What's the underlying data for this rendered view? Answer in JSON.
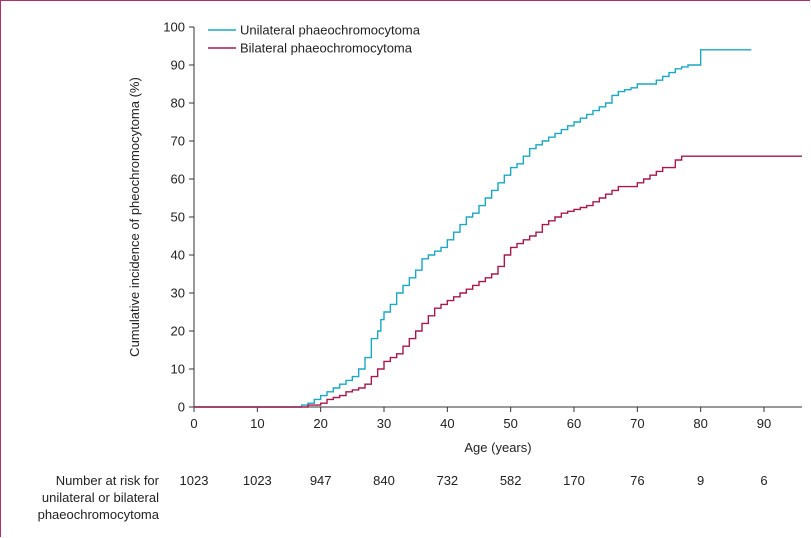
{
  "chart_data": {
    "type": "line",
    "step": true,
    "xlabel": "Age (years)",
    "ylabel": "Cumulative incidence of pheochromocytoma (%)",
    "xlim": [
      0,
      96
    ],
    "ylim": [
      0,
      100
    ],
    "x_ticks": [
      0,
      10,
      20,
      30,
      40,
      50,
      60,
      70,
      80,
      90
    ],
    "y_ticks": [
      0,
      10,
      20,
      30,
      40,
      50,
      60,
      70,
      80,
      90,
      100
    ],
    "grid": false,
    "legend_position": "top-left",
    "series": [
      {
        "name": "Unilateral phaeochromocytoma",
        "color": "#1aa8c4",
        "points": [
          [
            0,
            0
          ],
          [
            16,
            0
          ],
          [
            17,
            0.5
          ],
          [
            18,
            1
          ],
          [
            19,
            2
          ],
          [
            20,
            3
          ],
          [
            21,
            4
          ],
          [
            22,
            5
          ],
          [
            23,
            6
          ],
          [
            24,
            7
          ],
          [
            25,
            8
          ],
          [
            26,
            10
          ],
          [
            27,
            13
          ],
          [
            28,
            18
          ],
          [
            29,
            20
          ],
          [
            29.5,
            23
          ],
          [
            30,
            25
          ],
          [
            31,
            27
          ],
          [
            32,
            30
          ],
          [
            33,
            32
          ],
          [
            34,
            34
          ],
          [
            35,
            36
          ],
          [
            36,
            39
          ],
          [
            37,
            40
          ],
          [
            38,
            41
          ],
          [
            39,
            42
          ],
          [
            40,
            44
          ],
          [
            41,
            46
          ],
          [
            42,
            48
          ],
          [
            43,
            50
          ],
          [
            44,
            51
          ],
          [
            45,
            53
          ],
          [
            46,
            55
          ],
          [
            47,
            57
          ],
          [
            48,
            59
          ],
          [
            49,
            61
          ],
          [
            50,
            63
          ],
          [
            51,
            64
          ],
          [
            52,
            66
          ],
          [
            53,
            68
          ],
          [
            54,
            69
          ],
          [
            55,
            70
          ],
          [
            56,
            71
          ],
          [
            57,
            72
          ],
          [
            58,
            73
          ],
          [
            59,
            74
          ],
          [
            60,
            75
          ],
          [
            61,
            76
          ],
          [
            62,
            77
          ],
          [
            63,
            78
          ],
          [
            64,
            79
          ],
          [
            65,
            80
          ],
          [
            66,
            82
          ],
          [
            67,
            83
          ],
          [
            68,
            83.5
          ],
          [
            69,
            84
          ],
          [
            70,
            85
          ],
          [
            71,
            85
          ],
          [
            72,
            85
          ],
          [
            73,
            86
          ],
          [
            74,
            87
          ],
          [
            75,
            88
          ],
          [
            76,
            89
          ],
          [
            77,
            89.5
          ],
          [
            78,
            90
          ],
          [
            80,
            94
          ],
          [
            88,
            94
          ]
        ]
      },
      {
        "name": "Bilateral phaeochromocytoma",
        "color": "#a8184c",
        "points": [
          [
            0,
            0
          ],
          [
            17,
            0
          ],
          [
            18,
            0.5
          ],
          [
            20,
            1
          ],
          [
            21,
            2
          ],
          [
            22,
            2.5
          ],
          [
            23,
            3
          ],
          [
            24,
            4
          ],
          [
            25,
            4.5
          ],
          [
            26,
            5
          ],
          [
            27,
            6
          ],
          [
            28,
            8
          ],
          [
            29,
            10
          ],
          [
            30,
            12
          ],
          [
            31,
            13
          ],
          [
            32,
            14
          ],
          [
            33,
            16
          ],
          [
            34,
            18
          ],
          [
            35,
            20
          ],
          [
            36,
            22
          ],
          [
            37,
            24
          ],
          [
            38,
            26
          ],
          [
            39,
            27
          ],
          [
            40,
            28
          ],
          [
            41,
            29
          ],
          [
            42,
            30
          ],
          [
            43,
            31
          ],
          [
            44,
            32
          ],
          [
            45,
            33
          ],
          [
            46,
            34
          ],
          [
            47,
            35
          ],
          [
            48,
            37
          ],
          [
            49,
            40
          ],
          [
            50,
            42
          ],
          [
            51,
            43
          ],
          [
            52,
            44
          ],
          [
            53,
            45
          ],
          [
            54,
            46
          ],
          [
            55,
            48
          ],
          [
            56,
            49
          ],
          [
            57,
            50
          ],
          [
            58,
            51
          ],
          [
            59,
            51.5
          ],
          [
            60,
            52
          ],
          [
            61,
            52.5
          ],
          [
            62,
            53
          ],
          [
            63,
            54
          ],
          [
            64,
            55
          ],
          [
            65,
            56
          ],
          [
            66,
            57
          ],
          [
            67,
            58
          ],
          [
            68,
            58
          ],
          [
            69,
            58
          ],
          [
            70,
            59
          ],
          [
            71,
            60
          ],
          [
            72,
            61
          ],
          [
            73,
            62
          ],
          [
            74,
            63
          ],
          [
            76,
            65
          ],
          [
            77,
            66
          ],
          [
            96,
            66
          ]
        ]
      }
    ],
    "at_risk": {
      "label_lines": [
        "Number at risk for",
        "unilateral or bilateral",
        "phaeochromocytoma"
      ],
      "ages": [
        0,
        10,
        20,
        30,
        40,
        50,
        60,
        70,
        80,
        90
      ],
      "counts": [
        "1023",
        "1023",
        "947",
        "840",
        "732",
        "582",
        "170",
        "76",
        "9",
        "6"
      ]
    }
  }
}
